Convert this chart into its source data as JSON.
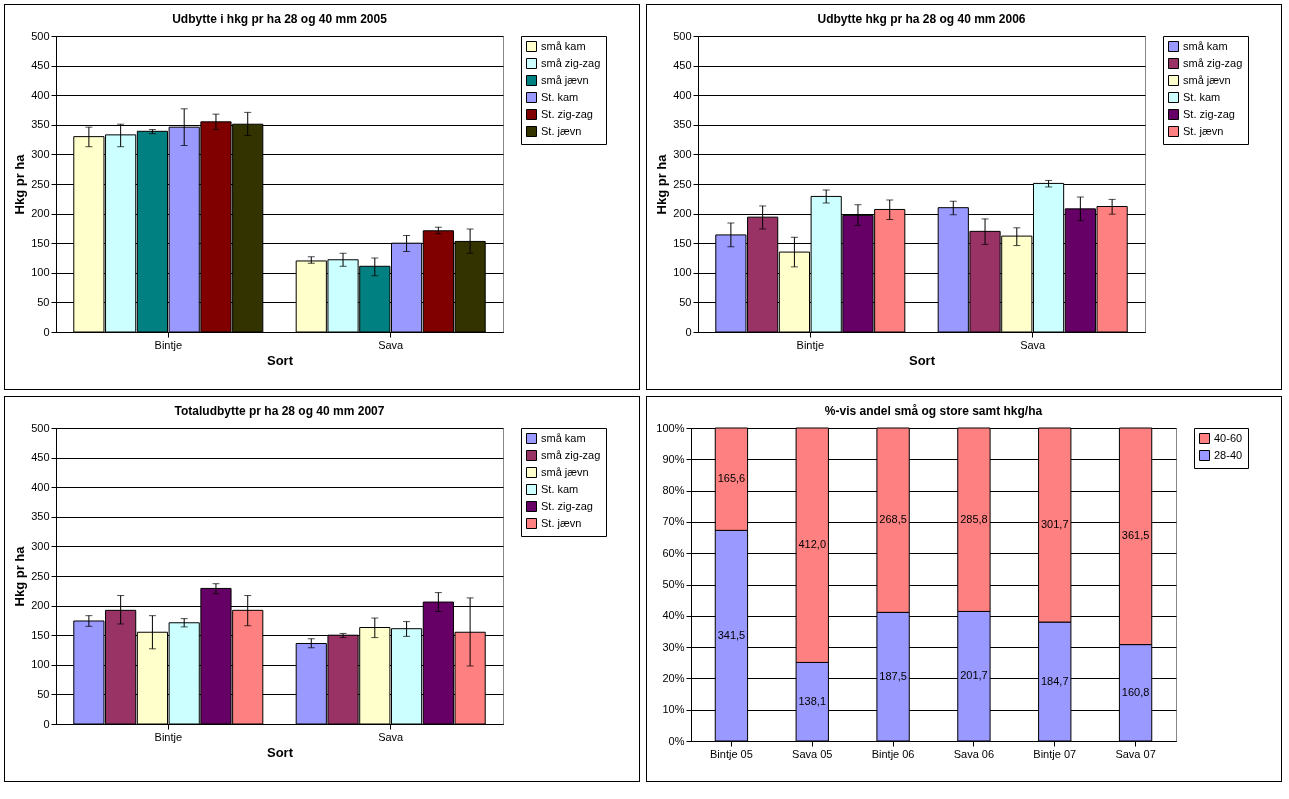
{
  "chart_data": [
    {
      "type": "bar",
      "title": "Udbytte i hkg pr ha 28 og 40 mm  2005",
      "xlabel": "Sort",
      "ylabel": "Hkg pr ha",
      "categories": [
        "Bintje",
        "Sava"
      ],
      "ylim": [
        0,
        500
      ],
      "yticks": [
        0,
        50,
        100,
        150,
        200,
        250,
        300,
        350,
        400,
        450,
        500
      ],
      "grid": "y",
      "legend": "right",
      "series": [
        {
          "name": "små kam",
          "color": "#ffffcc",
          "values": [
            330,
            120
          ],
          "errors": [
            [
              313,
              346
            ],
            [
              116,
              127
            ]
          ]
        },
        {
          "name": "små zig-zag",
          "color": "#ccffff",
          "values": [
            333,
            122
          ],
          "errors": [
            [
              313,
              351
            ],
            [
              111,
              133
            ]
          ]
        },
        {
          "name": "små jævn",
          "color": "#008080",
          "values": [
            339,
            111
          ],
          "errors": [
            [
              335,
              342
            ],
            [
              95,
              125
            ]
          ]
        },
        {
          "name": "St. kam",
          "color": "#9999ff",
          "values": [
            346,
            150
          ],
          "errors": [
            [
              315,
              377
            ],
            [
              136,
              163
            ]
          ]
        },
        {
          "name": "St. zig-zag",
          "color": "#800000",
          "values": [
            355,
            171
          ],
          "errors": [
            [
              342,
              368
            ],
            [
              166,
              177
            ]
          ]
        },
        {
          "name": "St. jævn",
          "color": "#333300",
          "values": [
            351,
            153
          ],
          "errors": [
            [
              332,
              371
            ],
            [
              133,
              174
            ]
          ]
        }
      ]
    },
    {
      "type": "bar",
      "title": "Udbytte hkg pr ha  28 og 40 mm 2006",
      "xlabel": "Sort",
      "ylabel": "Hkg pr ha",
      "categories": [
        "Bintje",
        "Sava"
      ],
      "ylim": [
        0,
        500
      ],
      "yticks": [
        0,
        50,
        100,
        150,
        200,
        250,
        300,
        350,
        400,
        450,
        500
      ],
      "grid": "y",
      "legend": "right",
      "series": [
        {
          "name": "små kam",
          "color": "#9999ff",
          "values": [
            164,
            210
          ],
          "errors": [
            [
              144,
              184
            ],
            [
              198,
              221
            ]
          ]
        },
        {
          "name": "små zig-zag",
          "color": "#993366",
          "values": [
            194,
            170
          ],
          "errors": [
            [
              174,
              213
            ],
            [
              148,
              191
            ]
          ]
        },
        {
          "name": "små jævn",
          "color": "#ffffcc",
          "values": [
            135,
            162
          ],
          "errors": [
            [
              110,
              160
            ],
            [
              146,
              176
            ]
          ]
        },
        {
          "name": "St. kam",
          "color": "#ccffff",
          "values": [
            229,
            251
          ],
          "errors": [
            [
              218,
              240
            ],
            [
              245,
              256
            ]
          ]
        },
        {
          "name": "St. zig-zag",
          "color": "#660066",
          "values": [
            197,
            208
          ],
          "errors": [
            [
              180,
              215
            ],
            [
              188,
              228
            ]
          ]
        },
        {
          "name": "St. jævn",
          "color": "#ff8080",
          "values": [
            207,
            212
          ],
          "errors": [
            [
              190,
              223
            ],
            [
              199,
              224
            ]
          ]
        }
      ]
    },
    {
      "type": "bar",
      "title": "Totaludbytte pr ha 28 og 40 mm 2007",
      "xlabel": "Sort",
      "ylabel": "Hkg pr ha",
      "categories": [
        "Bintje",
        "Sava"
      ],
      "ylim": [
        0,
        500
      ],
      "yticks": [
        0,
        50,
        100,
        150,
        200,
        250,
        300,
        350,
        400,
        450,
        500
      ],
      "grid": "y",
      "legend": "right",
      "series": [
        {
          "name": "små kam",
          "color": "#9999ff",
          "values": [
            174,
            136
          ],
          "errors": [
            [
              165,
              183
            ],
            [
              129,
              144
            ]
          ]
        },
        {
          "name": "små zig-zag",
          "color": "#993366",
          "values": [
            192,
            150
          ],
          "errors": [
            [
              169,
              217
            ],
            [
              146,
              153
            ]
          ]
        },
        {
          "name": "små jævn",
          "color": "#ffffcc",
          "values": [
            155,
            163
          ],
          "errors": [
            [
              127,
              183
            ],
            [
              146,
              179
            ]
          ]
        },
        {
          "name": "St. kam",
          "color": "#ccffff",
          "values": [
            171,
            161
          ],
          "errors": [
            [
              164,
              178
            ],
            [
              148,
              173
            ]
          ]
        },
        {
          "name": "St. zig-zag",
          "color": "#660066",
          "values": [
            229,
            206
          ],
          "errors": [
            [
              220,
              237
            ],
            [
              190,
              222
            ]
          ]
        },
        {
          "name": "St. jævn",
          "color": "#ff8080",
          "values": [
            192,
            155
          ],
          "errors": [
            [
              166,
              217
            ],
            [
              98,
              213
            ]
          ]
        }
      ]
    },
    {
      "type": "bar",
      "title": "%-vis andel små og store samt hkg/ha",
      "categories": [
        "Bintje 05",
        "Sava 05",
        "Bintje 06",
        "Sava 06",
        "Bintje 07",
        "Sava 07"
      ],
      "stacked": true,
      "ylim": [
        0,
        100
      ],
      "yticks": [
        {
          "value": 0,
          "label": "0%"
        },
        {
          "value": 10,
          "label": "10%"
        },
        {
          "value": 20,
          "label": "20%"
        },
        {
          "value": 30,
          "label": "30%"
        },
        {
          "value": 40,
          "label": "40%"
        },
        {
          "value": 50,
          "label": "50%"
        },
        {
          "value": 60,
          "label": "60%"
        },
        {
          "value": 70,
          "label": "70%"
        },
        {
          "value": 80,
          "label": "80%"
        },
        {
          "value": 90,
          "label": "90%"
        },
        {
          "value": 100,
          "label": "100%"
        }
      ],
      "grid": "y",
      "legend": "right",
      "series": [
        {
          "name": "28-40",
          "color": "#9999ff",
          "values": [
            67.3,
            25.1,
            41.1,
            41.4,
            38.0,
            30.8
          ]
        },
        {
          "name": "40-60",
          "color": "#ff8080",
          "values": [
            32.7,
            74.9,
            58.9,
            58.6,
            62.0,
            69.2
          ]
        }
      ],
      "annotations": [
        "341,5",
        "138,1",
        "187,5",
        "201,7",
        "184,7",
        "160,8",
        "165,6",
        "412,0",
        "268,5",
        "285,8",
        "301,7",
        "361,5"
      ]
    }
  ]
}
